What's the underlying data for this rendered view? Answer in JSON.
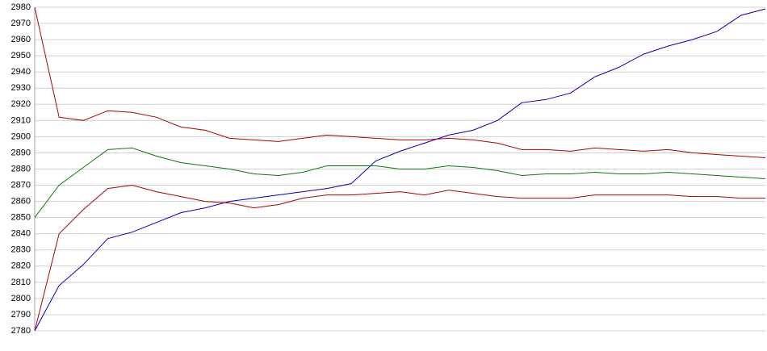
{
  "chart_data": {
    "type": "line",
    "ylim": [
      2780,
      2980
    ],
    "yticks": [
      2780,
      2790,
      2800,
      2810,
      2820,
      2830,
      2840,
      2850,
      2860,
      2870,
      2880,
      2890,
      2900,
      2910,
      2920,
      2930,
      2940,
      2950,
      2960,
      2970,
      2980
    ],
    "grid": true,
    "series": [
      {
        "color": "#0000c0",
        "values": [
          2780,
          2808,
          2821,
          2837,
          2841,
          2847,
          2853,
          2856,
          2860,
          2862,
          2864,
          2866,
          2868,
          2871,
          2885,
          2891,
          2896,
          2901,
          2904,
          2910,
          2921,
          2923,
          2927,
          2937,
          2943,
          2951,
          2956,
          2960,
          2965,
          2975,
          2979
        ]
      },
      {
        "color": "#b00000",
        "values": [
          2980,
          2912,
          2910,
          2916,
          2915,
          2912,
          2906,
          2904,
          2899,
          2898,
          2897,
          2899,
          2901,
          2900,
          2899,
          2898,
          2898,
          2899,
          2898,
          2896,
          2892,
          2892,
          2891,
          2893,
          2892,
          2891,
          2892,
          2890,
          2889,
          2888,
          2887
        ]
      },
      {
        "color": "#008000",
        "values": [
          2850,
          2870,
          2881,
          2892,
          2893,
          2888,
          2884,
          2882,
          2880,
          2877,
          2876,
          2878,
          2882,
          2882,
          2882,
          2880,
          2880,
          2882,
          2881,
          2879,
          2876,
          2877,
          2877,
          2878,
          2877,
          2877,
          2878,
          2877,
          2876,
          2875,
          2874
        ]
      },
      {
        "color": "#b00000",
        "values": [
          2780,
          2840,
          2855,
          2868,
          2870,
          2866,
          2863,
          2860,
          2859,
          2856,
          2858,
          2862,
          2864,
          2864,
          2865,
          2866,
          2864,
          2867,
          2865,
          2863,
          2862,
          2862,
          2862,
          2864,
          2864,
          2864,
          2864,
          2863,
          2863,
          2862,
          2862
        ]
      }
    ]
  }
}
